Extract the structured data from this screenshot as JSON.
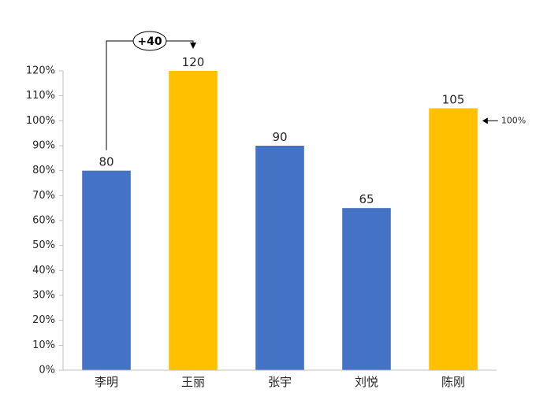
{
  "chart_data": {
    "type": "bar",
    "categories": [
      "李明",
      "王丽",
      "张宇",
      "刘悦",
      "陈刚"
    ],
    "values": [
      80,
      120,
      90,
      65,
      105
    ],
    "value_unit": "%",
    "data_labels": [
      "80",
      "120",
      "90",
      "65",
      "105"
    ],
    "bar_colors": [
      "#4472C4",
      "#FFC000",
      "#4472C4",
      "#4472C4",
      "#FFC000"
    ],
    "ylim": [
      0,
      120
    ],
    "ytick_step": 10,
    "ytick_labels": [
      "0%",
      "10%",
      "20%",
      "30%",
      "40%",
      "50%",
      "60%",
      "70%",
      "80%",
      "90%",
      "100%",
      "110%",
      "120%"
    ],
    "grid": false,
    "legend": "none",
    "annotations": {
      "difference": {
        "text": "+40",
        "from_category": "李明",
        "to_category": "王丽"
      },
      "reference": {
        "text": "100%",
        "category": "陈刚",
        "value": 100
      }
    }
  }
}
